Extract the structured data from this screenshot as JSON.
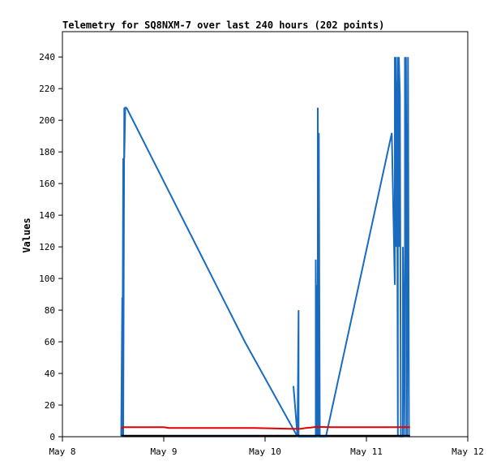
{
  "chart_data": {
    "type": "line",
    "title": "Telemetry for SQ8NXM-7 over last 240 hours (202 points)",
    "xlabel": "",
    "ylabel": "Values",
    "x_ticks": [
      "May 8",
      "May 9",
      "May 10",
      "May 11",
      "May 12"
    ],
    "y_ticks": [
      "0",
      "20",
      "40",
      "60",
      "80",
      "100",
      "120",
      "140",
      "160",
      "180",
      "200",
      "220",
      "240"
    ],
    "xlim": [
      0,
      4
    ],
    "ylim": [
      0,
      256
    ],
    "grid": false,
    "series": [
      {
        "color": "#1a6bbf",
        "x": [
          0.58,
          0.59,
          0.59,
          0.6,
          0.6,
          0.61,
          0.61,
          0.62,
          0.63,
          0.64,
          1.8,
          2.32,
          2.28,
          2.32,
          2.33,
          2.32,
          2.33,
          2.33,
          2.34,
          2.36,
          2.5,
          2.5,
          2.51,
          2.51,
          2.52,
          2.52,
          2.53,
          2.53,
          2.54,
          2.55,
          2.56,
          2.6,
          3.25,
          3.28,
          3.28,
          3.29,
          3.29,
          3.3,
          3.3,
          3.31,
          3.31,
          3.32,
          3.32,
          3.33,
          3.34,
          3.35,
          3.36,
          3.36,
          3.38,
          3.38,
          3.39,
          3.39,
          3.4,
          3.41,
          3.42,
          3.43
        ],
        "y": [
          0,
          88,
          0,
          176,
          0,
          208,
          176,
          208,
          208,
          207,
          60,
          0,
          32,
          0,
          16,
          0,
          80,
          0,
          0,
          0,
          0,
          112,
          0,
          96,
          0,
          208,
          0,
          192,
          0,
          0,
          0,
          0,
          192,
          96,
          240,
          120,
          240,
          192,
          224,
          0,
          240,
          120,
          240,
          216,
          0,
          0,
          0,
          120,
          0,
          240,
          128,
          240,
          0,
          240,
          0,
          0
        ]
      },
      {
        "color": "#e00000",
        "x": [
          0.58,
          0.6,
          1.0,
          1.05,
          1.9,
          2.25,
          2.35,
          2.4,
          2.45,
          2.5,
          2.65,
          3.0,
          3.43
        ],
        "y": [
          5,
          6,
          6,
          5.5,
          5.5,
          5,
          5,
          5.5,
          5.8,
          6.2,
          6,
          6,
          6
        ]
      },
      {
        "color": "#000000",
        "x": [
          0.58,
          3.43
        ],
        "y": [
          0.6,
          0.6
        ]
      }
    ]
  }
}
